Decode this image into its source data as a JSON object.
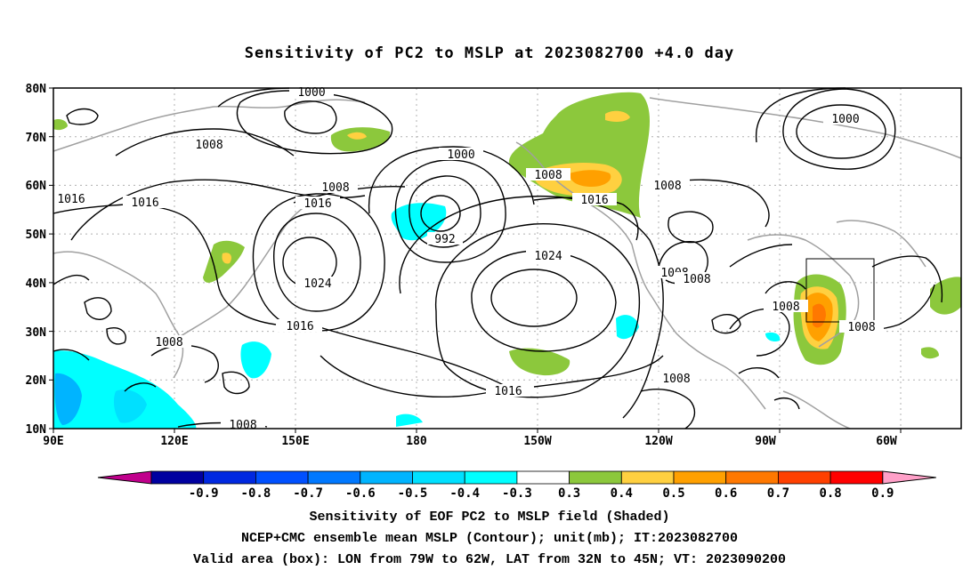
{
  "title": "Sensitivity of PC2 to MSLP at 2023082700 +4.0 day",
  "lat_labels": [
    "80N",
    "70N",
    "60N",
    "50N",
    "40N",
    "30N",
    "20N",
    "10N"
  ],
  "lon_labels": [
    "90E",
    "120E",
    "150E",
    "180",
    "150W",
    "120W",
    "90W",
    "60W"
  ],
  "contour_labels": [
    {
      "text": "1000"
    },
    {
      "text": "1000"
    },
    {
      "text": "1000"
    },
    {
      "text": "1008"
    },
    {
      "text": "1008"
    },
    {
      "text": "1008"
    },
    {
      "text": "1008"
    },
    {
      "text": "1008"
    },
    {
      "text": "1008"
    },
    {
      "text": "1008"
    },
    {
      "text": "1008"
    },
    {
      "text": "1008"
    },
    {
      "text": "1008"
    },
    {
      "text": "1008"
    },
    {
      "text": "1016"
    },
    {
      "text": "1016"
    },
    {
      "text": "1016"
    },
    {
      "text": "1016"
    },
    {
      "text": "1016"
    },
    {
      "text": "1016"
    },
    {
      "text": "1024"
    },
    {
      "text": "1024"
    },
    {
      "text": "992"
    }
  ],
  "colorbar": {
    "colors": [
      "#0000a0",
      "#0028e0",
      "#0050ff",
      "#0078ff",
      "#00b4ff",
      "#00e0ff",
      "#00ffff",
      "#ffffff",
      "#8cc83c",
      "#ffd040",
      "#ffa000",
      "#ff7800",
      "#ff4000",
      "#ff0000"
    ],
    "low_arrow_color": "#c0008c",
    "high_arrow_color": "#ffa0c8",
    "ticks": [
      "-0.9",
      "-0.8",
      "-0.7",
      "-0.6",
      "-0.5",
      "-0.4",
      "-0.3",
      "0.3",
      "0.4",
      "0.5",
      "0.6",
      "0.7",
      "0.8",
      "0.9"
    ]
  },
  "captions": [
    "Sensitivity of EOF PC2 to MSLP field (Shaded)",
    "NCEP+CMC ensemble mean MSLP (Contour); unit(mb); IT:2023082700",
    "Valid area (box): LON from 79W to 62W, LAT from 32N to 45N; VT: 2023090200"
  ]
}
